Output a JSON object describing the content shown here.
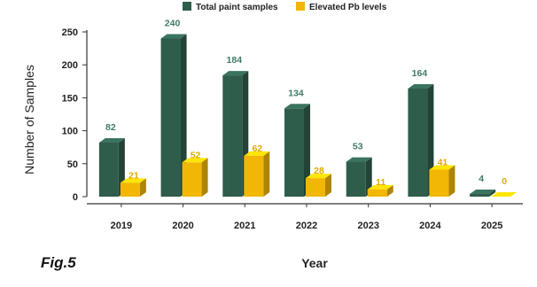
{
  "chart_data": {
    "type": "bar",
    "categories": [
      "2019",
      "2020",
      "2021",
      "2022",
      "2023",
      "2024",
      "2025"
    ],
    "series": [
      {
        "name": "Total paint samples",
        "values": [
          82,
          240,
          184,
          134,
          53,
          164,
          4
        ],
        "color": "#2f5d4b"
      },
      {
        "name": "Elevated Pb levels",
        "values": [
          21,
          52,
          62,
          28,
          11,
          41,
          0
        ],
        "color": "#f2b705"
      }
    ],
    "title": "",
    "xlabel": "Year",
    "ylabel": "Number of Samples",
    "ylim": [
      0,
      250
    ],
    "yticks": [
      0,
      50,
      100,
      150,
      200,
      250
    ],
    "grid": false,
    "legend_position": "top-center",
    "value_label_colors": {
      "Total paint samples": "#3f7a66",
      "Elevated Pb levels": "#e2a900"
    }
  },
  "figure_label": "Fig.5"
}
